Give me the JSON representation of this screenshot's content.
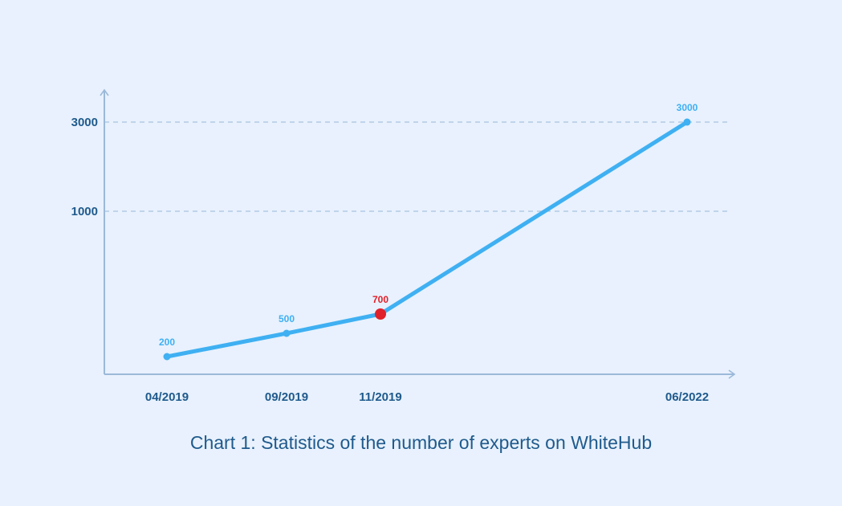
{
  "chart_data": {
    "type": "line",
    "title": "Chart 1: Statistics of the number of experts on WhiteHub",
    "xlabel": "",
    "ylabel": "",
    "x": [
      "04/2019",
      "09/2019",
      "11/2019",
      "06/2022"
    ],
    "y_ticks": [
      "1000",
      "3000"
    ],
    "grid": "dashed horizontal lines at y ticks",
    "series": [
      {
        "values": [
          200,
          500,
          700,
          3000
        ],
        "data_labels": [
          "200",
          "500",
          "700",
          "3000"
        ],
        "highlighted_point": "11/2019"
      }
    ],
    "colors": {
      "line": "#3fb0f2",
      "highlight": "#e0202a",
      "axis": "#9bb9d9",
      "grid": "#a9c2de",
      "tick_text": "#1f5a8c"
    }
  }
}
